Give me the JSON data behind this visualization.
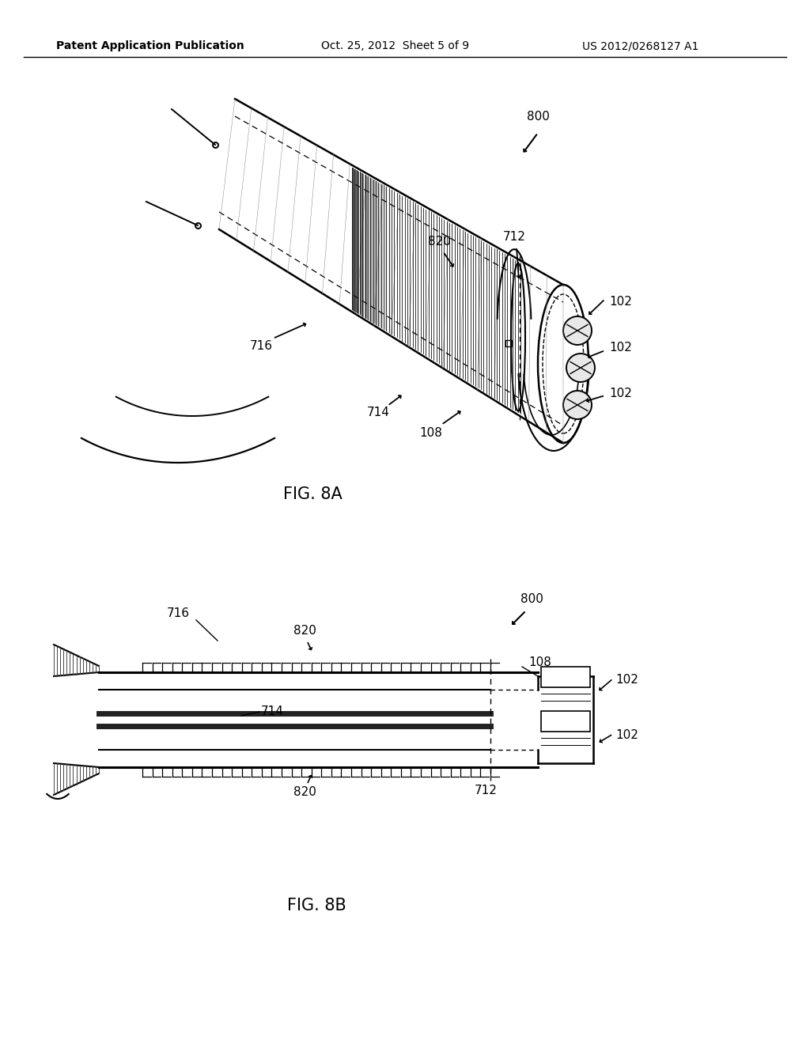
{
  "bg_color": "#ffffff",
  "header_left": "Patent Application Publication",
  "header_mid": "Oct. 25, 2012  Sheet 5 of 9",
  "header_right": "US 2012/0268127 A1",
  "fig8a_label": "FIG. 8A",
  "fig8b_label": "FIG. 8B"
}
